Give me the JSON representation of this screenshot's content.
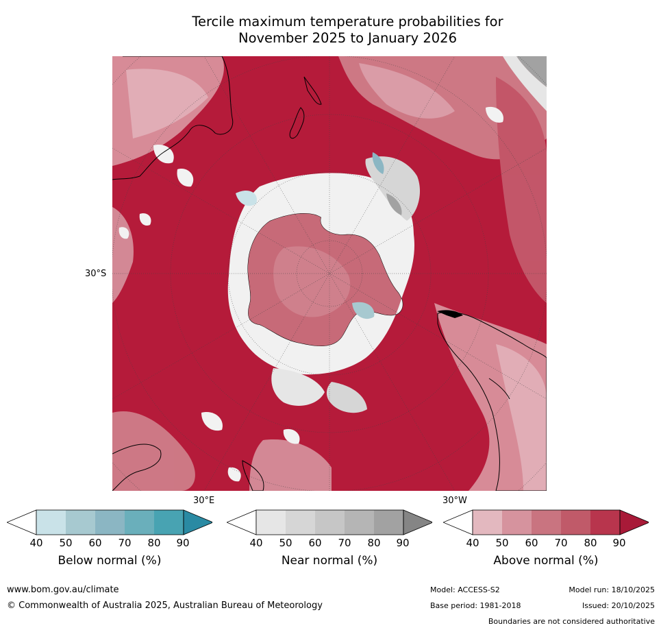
{
  "title_line1": "Tercile maximum temperature probabilities for",
  "title_line2": "November 2025 to January 2026",
  "map": {
    "projection": "south polar stereographic",
    "lat_label": "30°S",
    "lon_label_east": "30°E",
    "lon_label_west": "30°W",
    "ocean_dominant_color": "#b51b3a",
    "coastline_color": "#000000"
  },
  "colorbars": [
    {
      "id": "below",
      "label": "Below normal (%)",
      "ticks": [
        "40",
        "50",
        "60",
        "70",
        "80",
        "90"
      ],
      "colors": [
        "#ffffff",
        "#c9e2e8",
        "#a7c9d0",
        "#8bb6c3",
        "#6aafbb",
        "#48a3b2",
        "#2a8aa3"
      ]
    },
    {
      "id": "near",
      "label": "Near normal (%)",
      "ticks": [
        "40",
        "50",
        "60",
        "70",
        "80",
        "90"
      ],
      "colors": [
        "#ffffff",
        "#e6e6e6",
        "#d6d6d6",
        "#c6c6c6",
        "#b5b5b5",
        "#a2a2a2",
        "#858585"
      ]
    },
    {
      "id": "above",
      "label": "Above normal (%)",
      "ticks": [
        "40",
        "50",
        "60",
        "70",
        "80",
        "90"
      ],
      "colors": [
        "#ffffff",
        "#e3b8bf",
        "#d6939e",
        "#c97480",
        "#c05a69",
        "#b8354d",
        "#a81a38"
      ]
    }
  ],
  "footer": {
    "website": "www.bom.gov.au/climate",
    "copyright": "© Commonwealth of Australia 2025, Australian Bureau of Meteorology",
    "model": "Model: ACCESS-S2",
    "model_run": "Model run: 18/10/2025",
    "base_period": "Base period: 1981-2018",
    "issued": "Issued: 20/10/2025",
    "disclaimer": "Boundaries are not considered authoritative"
  }
}
